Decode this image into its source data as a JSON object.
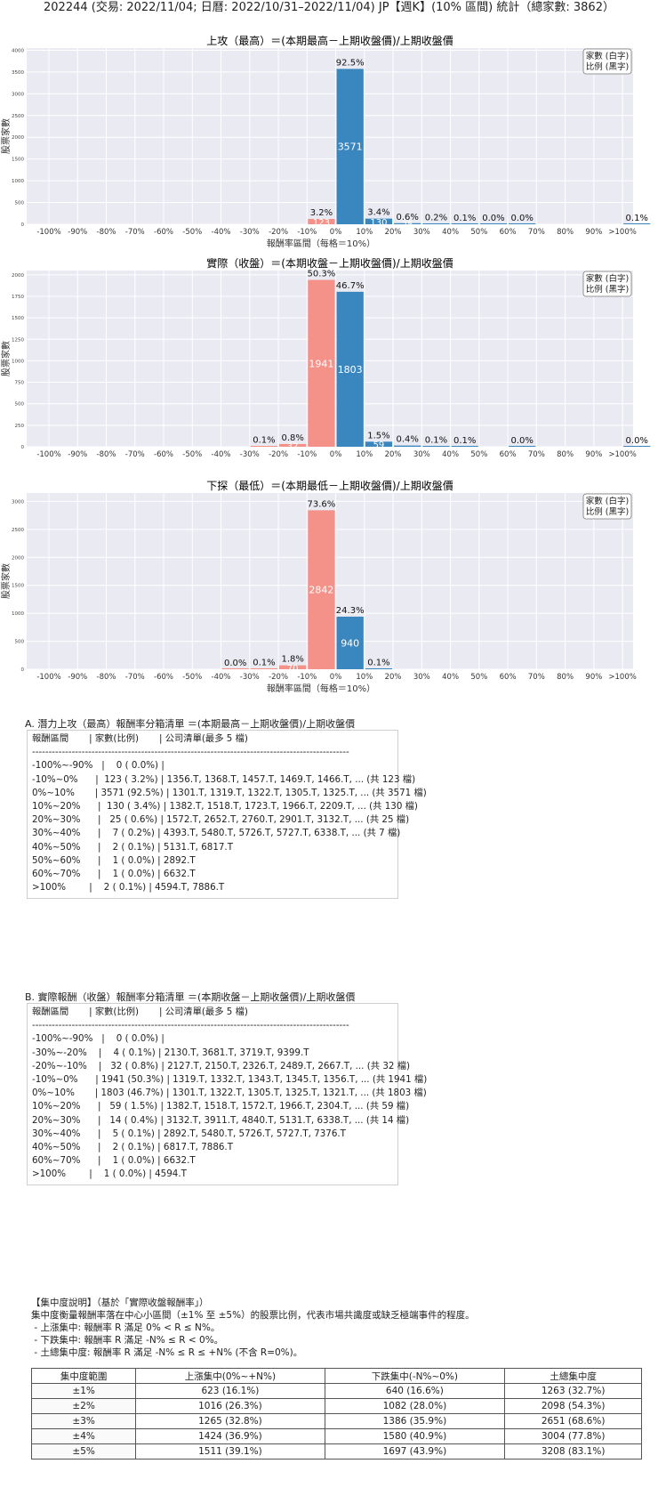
{
  "main_title": "202244 (交易: 2022/11/04; 日曆: 2022/10/31–2022/11/04) JP【週K】(10% 區間) 統計（總家數: 3862）",
  "chart_data": [
    {
      "type": "bar",
      "title": "上攻（最高）＝(本期最高－上期收盤價)/上期收盤價",
      "xlabel": "報酬率區間（每格＝10%）",
      "ylabel": "股票家數",
      "legend": [
        "家數 (白字)",
        "比例 (黑字)"
      ],
      "legend_position": "top-right",
      "categories": [
        "-100%",
        "-90%",
        "-80%",
        "-70%",
        "-60%",
        "-50%",
        "-40%",
        "-30%",
        "-20%",
        "-10%",
        "0%",
        "10%",
        "20%",
        "30%",
        "40%",
        "50%",
        "60%",
        "70%",
        "80%",
        "90%",
        ">100%"
      ],
      "values": [
        0,
        0,
        0,
        0,
        0,
        0,
        0,
        0,
        0,
        123,
        3571,
        130,
        25,
        7,
        2,
        1,
        1,
        0,
        0,
        0,
        2
      ],
      "pct_labels": [
        "",
        "",
        "",
        "",
        "",
        "",
        "",
        "",
        "",
        "3.2%",
        "92.5%",
        "3.4%",
        "0.6%",
        "0.2%",
        "0.1%",
        "0.0%",
        "0.0%",
        "",
        "",
        "",
        "0.1%"
      ],
      "yticks": [
        0,
        500,
        1000,
        1500,
        2000,
        2500,
        3000,
        3500,
        4000
      ],
      "ylim": [
        0,
        4050
      ],
      "colors": {
        "negative": "#f4928a",
        "positive": "#3a87bf"
      }
    },
    {
      "type": "bar",
      "title": "實際（收盤）＝(本期收盤－上期收盤價)/上期收盤價",
      "xlabel": "",
      "ylabel": "股票家數",
      "legend": [
        "家數 (白字)",
        "比例 (黑字)"
      ],
      "legend_position": "top-right",
      "categories": [
        "-100%",
        "-90%",
        "-80%",
        "-70%",
        "-60%",
        "-50%",
        "-40%",
        "-30%",
        "-20%",
        "-10%",
        "0%",
        "10%",
        "20%",
        "30%",
        "40%",
        "50%",
        "60%",
        "70%",
        "80%",
        "90%",
        ">100%"
      ],
      "values": [
        0,
        0,
        0,
        0,
        0,
        0,
        0,
        4,
        32,
        1941,
        1803,
        59,
        14,
        5,
        2,
        0,
        1,
        0,
        0,
        0,
        1
      ],
      "pct_labels": [
        "",
        "",
        "",
        "",
        "",
        "",
        "",
        "0.1%",
        "0.8%",
        "50.3%",
        "46.7%",
        "1.5%",
        "0.4%",
        "0.1%",
        "0.1%",
        "",
        "0.0%",
        "",
        "",
        "",
        "0.0%"
      ],
      "yticks": [
        0,
        250,
        500,
        750,
        1000,
        1250,
        1500,
        1750,
        2000
      ],
      "ylim": [
        0,
        2050
      ],
      "colors": {
        "negative": "#f4928a",
        "positive": "#3a87bf"
      }
    },
    {
      "type": "bar",
      "title": "下探（最低）＝(本期最低－上期收盤價)/上期收盤價",
      "xlabel": "報酬率區間（每格＝10%）",
      "ylabel": "股票家數",
      "legend": [
        "家數 (白字)",
        "比例 (黑字)"
      ],
      "legend_position": "top-right",
      "categories": [
        "-100%",
        "-90%",
        "-80%",
        "-70%",
        "-60%",
        "-50%",
        "-40%",
        "-30%",
        "-20%",
        "-10%",
        "0%",
        "10%",
        "20%",
        "30%",
        "40%",
        "50%",
        "60%",
        "70%",
        "80%",
        "90%",
        ">100%"
      ],
      "values": [
        0,
        0,
        0,
        0,
        0,
        0,
        1,
        5,
        70,
        2842,
        940,
        4,
        0,
        0,
        0,
        0,
        0,
        0,
        0,
        0,
        0
      ],
      "pct_labels": [
        "",
        "",
        "",
        "",
        "",
        "",
        "0.0%",
        "0.1%",
        "1.8%",
        "73.6%",
        "24.3%",
        "0.1%",
        "",
        "",
        "",
        "",
        "",
        "",
        "",
        "",
        ""
      ],
      "yticks": [
        0,
        500,
        1000,
        1500,
        2000,
        2500,
        3000
      ],
      "ylim": [
        0,
        3150
      ],
      "colors": {
        "negative": "#f4928a",
        "positive": "#3a87bf"
      }
    }
  ],
  "section_a": {
    "title": "A. 潛力上攻（最高）報酬率分箱清單 ＝(本期最高－上期收盤價)/上期收盤價",
    "lines": [
      "報酬區間       | 家數(比例)       | 公司清單(最多 5 檔)",
      "------------------------------------------------------------------------------------------------",
      "-100%~-90%   |    0 ( 0.0%) |",
      "-10%~0%      |  123 ( 3.2%) | 1356.T, 1368.T, 1457.T, 1469.T, 1466.T, ... (共 123 檔)",
      "0%~10%       | 3571 (92.5%) | 1301.T, 1319.T, 1322.T, 1305.T, 1325.T, ... (共 3571 檔)",
      "10%~20%      |  130 ( 3.4%) | 1382.T, 1518.T, 1723.T, 1966.T, 2209.T, ... (共 130 檔)",
      "20%~30%      |   25 ( 0.6%) | 1572.T, 2652.T, 2760.T, 2901.T, 3132.T, ... (共 25 檔)",
      "30%~40%      |    7 ( 0.2%) | 4393.T, 5480.T, 5726.T, 5727.T, 6338.T, ... (共 7 檔)",
      "40%~50%      |    2 ( 0.1%) | 5131.T, 6817.T",
      "50%~60%      |    1 ( 0.0%) | 2892.T",
      "60%~70%      |    1 ( 0.0%) | 6632.T",
      ">100%        |    2 ( 0.1%) | 4594.T, 7886.T"
    ]
  },
  "section_b": {
    "title": "B. 實際報酬（收盤）報酬率分箱清單 ＝(本期收盤－上期收盤價)/上期收盤價",
    "lines": [
      "報酬區間       | 家數(比例)       | 公司清單(最多 5 檔)",
      "------------------------------------------------------------------------------------------------",
      "-100%~-90%   |    0 ( 0.0%) |",
      "-30%~-20%    |    4 ( 0.1%) | 2130.T, 3681.T, 3719.T, 9399.T",
      "-20%~-10%    |   32 ( 0.8%) | 2127.T, 2150.T, 2326.T, 2489.T, 2667.T, ... (共 32 檔)",
      "-10%~0%      | 1941 (50.3%) | 1319.T, 1332.T, 1343.T, 1345.T, 1356.T, ... (共 1941 檔)",
      "0%~10%       | 1803 (46.7%) | 1301.T, 1322.T, 1305.T, 1325.T, 1321.T, ... (共 1803 檔)",
      "10%~20%      |   59 ( 1.5%) | 1382.T, 1518.T, 1572.T, 1966.T, 2304.T, ... (共 59 檔)",
      "20%~30%      |   14 ( 0.4%) | 3132.T, 3911.T, 4840.T, 5131.T, 6338.T, ... (共 14 檔)",
      "30%~40%      |    5 ( 0.1%) | 2892.T, 5480.T, 5726.T, 5727.T, 7376.T",
      "40%~50%      |    2 ( 0.1%) | 6817.T, 7886.T",
      "60%~70%      |    1 ( 0.0%) | 6632.T",
      ">100%        |    1 ( 0.0%) | 4594.T"
    ]
  },
  "concentration": {
    "lines": [
      "【集中度說明】（基於「實際收盤報酬率」）",
      "集中度衡量報酬率落在中心小區間（±1% 至 ±5%）的股票比例，代表市場共識度或缺乏極端事件的程度。",
      " - 上漲集中: 報酬率 R 滿足 0% < R ≤ N%。",
      " - 下跌集中: 報酬率 R 滿足 -N% ≤ R < 0%。",
      " - 土總集中度: 報酬率 R 滿足 -N% ≤ R ≤ +N% (不含 R=0%)。"
    ],
    "headers": [
      "集中度範圍",
      "上漲集中(0%~+N%)",
      "下跌集中(-N%~0%)",
      "土總集中度"
    ],
    "rows": [
      [
        "±1%",
        "623 (16.1%)",
        "640 (16.6%)",
        "1263 (32.7%)"
      ],
      [
        "±2%",
        "1016 (26.3%)",
        "1082 (28.0%)",
        "2098 (54.3%)"
      ],
      [
        "±3%",
        "1265 (32.8%)",
        "1386 (35.9%)",
        "2651 (68.6%)"
      ],
      [
        "±4%",
        "1424 (36.9%)",
        "1580 (40.9%)",
        "3004 (77.8%)"
      ],
      [
        "±5%",
        "1511 (39.1%)",
        "1697 (43.9%)",
        "3208 (83.1%)"
      ]
    ]
  }
}
